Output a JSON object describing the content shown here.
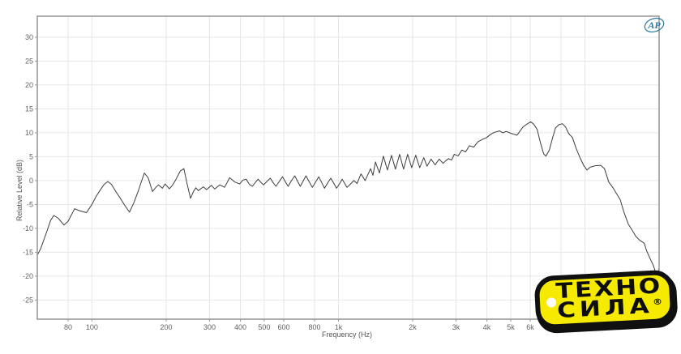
{
  "chart_data": {
    "type": "line",
    "title": "",
    "xlabel": "Frequency (Hz)",
    "ylabel": "Relative Level (dB)",
    "x_scale": "log",
    "xlim": [
      60,
      20000
    ],
    "ylim": [
      -29,
      34.4
    ],
    "grid": true,
    "legend": false,
    "line_color": "#3d3d3d",
    "frame_color": "#9a9a9a",
    "grid_color": "#e6e6e6",
    "y_ticks": [
      30,
      25,
      20,
      15,
      10,
      5,
      0,
      -5,
      -10,
      -15,
      -20,
      -25
    ],
    "x_gridlines": [
      80,
      100,
      200,
      300,
      400,
      500,
      600,
      800,
      1000,
      2000,
      3000,
      4000,
      5000,
      6000,
      8000,
      10000,
      20000
    ],
    "x_tick_labels": [
      {
        "v": 80,
        "label": "80"
      },
      {
        "v": 100,
        "label": "100"
      },
      {
        "v": 200,
        "label": "200"
      },
      {
        "v": 300,
        "label": "300"
      },
      {
        "v": 400,
        "label": "400"
      },
      {
        "v": 500,
        "label": "500"
      },
      {
        "v": 600,
        "label": "600"
      },
      {
        "v": 800,
        "label": "800"
      },
      {
        "v": 1000,
        "label": "1k"
      },
      {
        "v": 2000,
        "label": "2k"
      },
      {
        "v": 3000,
        "label": "3k"
      },
      {
        "v": 4000,
        "label": "4k"
      },
      {
        "v": 5000,
        "label": "5k"
      },
      {
        "v": 6000,
        "label": "6k"
      }
    ],
    "series": [
      {
        "name": "Relative Level",
        "points": [
          [
            60,
            -15.6
          ],
          [
            62,
            -14.2
          ],
          [
            65,
            -11.2
          ],
          [
            68,
            -8.3
          ],
          [
            70,
            -7.3
          ],
          [
            73,
            -7.9
          ],
          [
            77,
            -9.3
          ],
          [
            80,
            -8.5
          ],
          [
            85,
            -5.9
          ],
          [
            89,
            -6.3
          ],
          [
            95,
            -6.7
          ],
          [
            100,
            -5.0
          ],
          [
            104,
            -3.3
          ],
          [
            108,
            -2.0
          ],
          [
            112,
            -0.8
          ],
          [
            116,
            -0.2
          ],
          [
            120,
            -0.8
          ],
          [
            125,
            -2.3
          ],
          [
            130,
            -3.6
          ],
          [
            135,
            -5.0
          ],
          [
            142,
            -6.6
          ],
          [
            148,
            -4.6
          ],
          [
            154,
            -2.2
          ],
          [
            163,
            1.6
          ],
          [
            169,
            0.6
          ],
          [
            176,
            -2.3
          ],
          [
            181,
            -1.5
          ],
          [
            186,
            -0.9
          ],
          [
            193,
            -1.6
          ],
          [
            198,
            -0.7
          ],
          [
            206,
            -1.7
          ],
          [
            212,
            -1.0
          ],
          [
            219,
            0.2
          ],
          [
            228,
            2.0
          ],
          [
            236,
            2.5
          ],
          [
            244,
            -1.0
          ],
          [
            251,
            -3.7
          ],
          [
            258,
            -2.3
          ],
          [
            264,
            -1.5
          ],
          [
            270,
            -2.1
          ],
          [
            283,
            -1.3
          ],
          [
            292,
            -1.9
          ],
          [
            305,
            -1.0
          ],
          [
            315,
            -1.75
          ],
          [
            330,
            -0.9
          ],
          [
            345,
            -1.4
          ],
          [
            362,
            0.6
          ],
          [
            380,
            -0.3
          ],
          [
            397,
            -0.7
          ],
          [
            410,
            0.1
          ],
          [
            422,
            0.3
          ],
          [
            435,
            -0.8
          ],
          [
            447,
            -1.2
          ],
          [
            460,
            -0.4
          ],
          [
            472,
            0.3
          ],
          [
            485,
            -0.4
          ],
          [
            497,
            -0.9
          ],
          [
            512,
            -0.2
          ],
          [
            529,
            0.5
          ],
          [
            543,
            -0.4
          ],
          [
            558,
            -1.2
          ],
          [
            575,
            -0.2
          ],
          [
            593,
            0.8
          ],
          [
            608,
            -0.2
          ],
          [
            625,
            -1.2
          ],
          [
            645,
            0.0
          ],
          [
            665,
            1.0
          ],
          [
            682,
            -0.1
          ],
          [
            700,
            -1.2
          ],
          [
            719,
            -0.1
          ],
          [
            738,
            1.0
          ],
          [
            760,
            -0.2
          ],
          [
            784,
            -1.4
          ],
          [
            808,
            -0.3
          ],
          [
            832,
            0.8
          ],
          [
            855,
            -0.4
          ],
          [
            878,
            -1.6
          ],
          [
            904,
            -0.5
          ],
          [
            931,
            0.5
          ],
          [
            956,
            -0.5
          ],
          [
            982,
            -1.6
          ],
          [
            1009,
            -0.7
          ],
          [
            1036,
            0.3
          ],
          [
            1060,
            -0.6
          ],
          [
            1083,
            -1.4
          ],
          [
            1120,
            -0.7
          ],
          [
            1155,
            0.0
          ],
          [
            1190,
            -0.6
          ],
          [
            1235,
            1.4
          ],
          [
            1283,
            0.0
          ],
          [
            1350,
            2.5
          ],
          [
            1380,
            1.1
          ],
          [
            1413,
            3.9
          ],
          [
            1466,
            1.6
          ],
          [
            1522,
            5.1
          ],
          [
            1580,
            2.2
          ],
          [
            1641,
            5.3
          ],
          [
            1704,
            2.4
          ],
          [
            1770,
            5.5
          ],
          [
            1838,
            2.4
          ],
          [
            1909,
            5.5
          ],
          [
            1982,
            2.7
          ],
          [
            2058,
            5.3
          ],
          [
            2137,
            2.7
          ],
          [
            2219,
            4.8
          ],
          [
            2288,
            3.0
          ],
          [
            2376,
            4.5
          ],
          [
            2467,
            3.3
          ],
          [
            2562,
            4.5
          ],
          [
            2660,
            3.6
          ],
          [
            2730,
            4.2
          ],
          [
            2800,
            4.6
          ],
          [
            2880,
            4.3
          ],
          [
            2950,
            5.5
          ],
          [
            3060,
            5.2
          ],
          [
            3170,
            6.4
          ],
          [
            3280,
            6.0
          ],
          [
            3400,
            7.3
          ],
          [
            3540,
            7.0
          ],
          [
            3680,
            8.1
          ],
          [
            3830,
            8.6
          ],
          [
            3990,
            9.0
          ],
          [
            4150,
            9.7
          ],
          [
            4300,
            10.1
          ],
          [
            4500,
            10.4
          ],
          [
            4650,
            10.0
          ],
          [
            4800,
            10.3
          ],
          [
            5000,
            9.9
          ],
          [
            5300,
            9.5
          ],
          [
            5600,
            11.2
          ],
          [
            5850,
            11.9
          ],
          [
            6030,
            12.3
          ],
          [
            6200,
            11.8
          ],
          [
            6400,
            10.7
          ],
          [
            6600,
            7.9
          ],
          [
            6800,
            5.6
          ],
          [
            6950,
            5.1
          ],
          [
            7170,
            6.4
          ],
          [
            7400,
            9.0
          ],
          [
            7600,
            11.0
          ],
          [
            7840,
            11.7
          ],
          [
            8100,
            11.9
          ],
          [
            8350,
            11.2
          ],
          [
            8600,
            9.8
          ],
          [
            8900,
            9.0
          ],
          [
            9200,
            6.8
          ],
          [
            9550,
            4.8
          ],
          [
            9900,
            3.1
          ],
          [
            10200,
            2.2
          ],
          [
            10500,
            2.8
          ],
          [
            11000,
            3.1
          ],
          [
            11600,
            3.2
          ],
          [
            12000,
            2.5
          ],
          [
            12500,
            -0.3
          ],
          [
            13000,
            -1.5
          ],
          [
            13900,
            -4.0
          ],
          [
            14400,
            -6.6
          ],
          [
            15000,
            -9.1
          ],
          [
            15600,
            -10.5
          ],
          [
            16100,
            -11.7
          ],
          [
            16700,
            -12.5
          ],
          [
            17400,
            -13.1
          ],
          [
            17800,
            -14.7
          ],
          [
            18300,
            -16.1
          ],
          [
            18900,
            -17.6
          ],
          [
            19400,
            -19.3
          ],
          [
            19700,
            -19.5
          ],
          [
            20000,
            -18.3
          ]
        ]
      }
    ]
  },
  "logos": {
    "ap_text": "AP",
    "ap_color": "#2c7a99",
    "brand_line1": "ТЕХНО",
    "brand_line2": "СИЛА",
    "brand_reg_mark": "®",
    "brand_bg": "#f6ea00",
    "brand_border": "#101010"
  }
}
